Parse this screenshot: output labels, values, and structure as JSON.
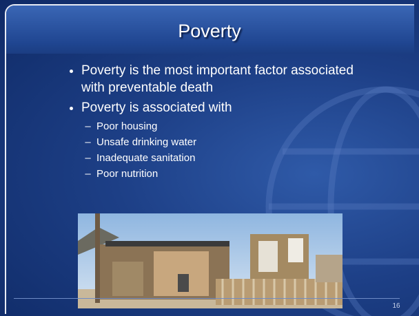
{
  "slide": {
    "title": "Poverty",
    "bullets": [
      {
        "text": "Poverty is the most important factor associated with preventable death"
      },
      {
        "text": "Poverty is associated with",
        "subitems": [
          "Poor housing",
          "Unsafe drinking water",
          "Inadequate sanitation",
          "Poor nutrition"
        ]
      }
    ],
    "page_number": "16"
  }
}
